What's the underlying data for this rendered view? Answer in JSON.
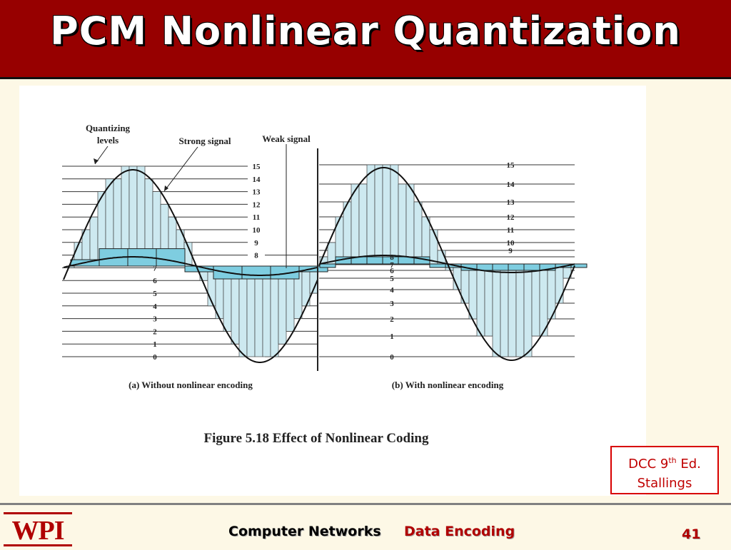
{
  "slide": {
    "title": "PCM Nonlinear Quantization",
    "page_number": "41"
  },
  "figure": {
    "label_quantizing_line1": "Quantizing",
    "label_quantizing_line2": "levels",
    "label_strong": "Strong signal",
    "label_weak": "Weak signal",
    "caption_a": "(a) Without nonlinear encoding",
    "caption_b": "(b) With nonlinear encoding",
    "figure_caption": "Figure 5.18   Effect of Nonlinear Coding",
    "levels_a": [
      "0",
      "1",
      "2",
      "3",
      "4",
      "5",
      "6",
      "7",
      "8",
      "9",
      "10",
      "11",
      "12",
      "13",
      "14",
      "15"
    ],
    "levels_b": [
      "0",
      "1",
      "2",
      "3",
      "4",
      "5",
      "6",
      "7",
      "8",
      "9",
      "10",
      "11",
      "12",
      "13",
      "14",
      "15"
    ]
  },
  "source": {
    "line1_prefix": "DCC 9",
    "line1_sup": "th",
    "line1_suffix": " Ed.",
    "line2": "Stallings"
  },
  "footer": {
    "logo_text": "WPI",
    "course": "Computer Networks",
    "topic": "Data Encoding"
  },
  "colors": {
    "title_bar": "#970000",
    "fill_light": "#cde9f0",
    "fill_dark": "#7ecde0",
    "accent_red": "#c00000"
  }
}
